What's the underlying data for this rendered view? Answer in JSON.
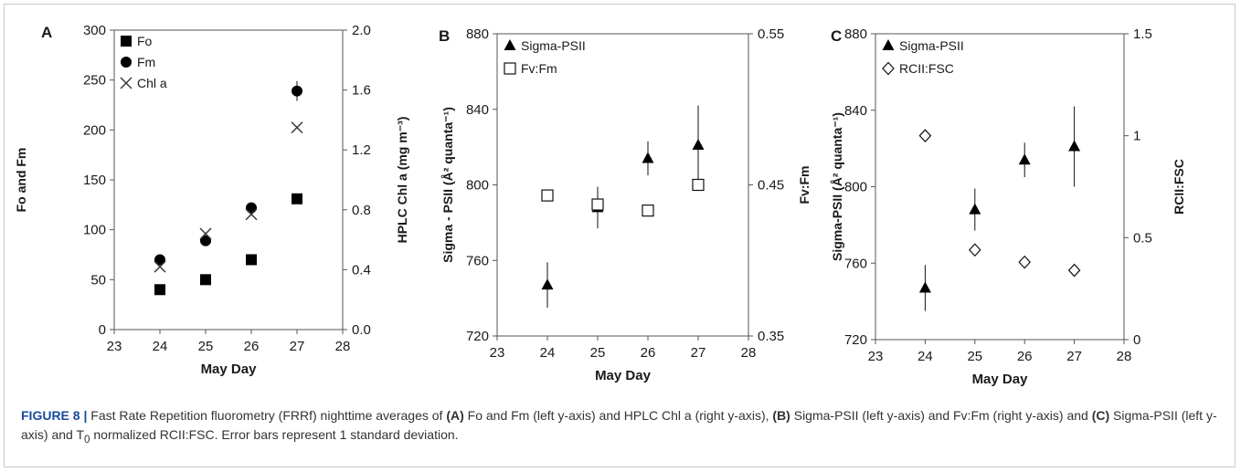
{
  "chart_data": [
    {
      "panel": "A",
      "type": "scatter",
      "xlabel": "May Day",
      "ylabel": "Fo and Fm",
      "y2label": "HPLC Chl a (mg m⁻³)",
      "xlim": [
        23,
        28
      ],
      "ylim": [
        0,
        300
      ],
      "y2lim": [
        0,
        2
      ],
      "xticks": [
        "23",
        "24",
        "25",
        "26",
        "27",
        "28"
      ],
      "yticks": [
        "0",
        "50",
        "100",
        "150",
        "200",
        "250",
        "300"
      ],
      "y2ticks": [
        "0.0",
        "0.4",
        "0.8",
        "1.2",
        "1.6",
        "2.0"
      ],
      "legend": "top-left",
      "series": [
        {
          "name": "Fo",
          "marker": "filled-square",
          "axis": "left",
          "x": [
            24,
            25,
            26,
            27
          ],
          "y": [
            40,
            50,
            70,
            131
          ]
        },
        {
          "name": "Fm",
          "marker": "filled-circle",
          "axis": "left",
          "x": [
            24,
            25,
            26,
            27
          ],
          "y": [
            70,
            89,
            122,
            239
          ],
          "err": [
            0,
            4,
            0,
            10
          ]
        },
        {
          "name": "Chl a",
          "marker": "x",
          "axis": "right",
          "x": [
            24,
            25,
            26,
            27
          ],
          "y": [
            0.42,
            0.64,
            0.77,
            1.35
          ]
        }
      ]
    },
    {
      "panel": "B",
      "type": "scatter",
      "xlabel": "May Day",
      "ylabel": "Sigma - PSII (Å² quanta⁻¹)",
      "y2label": "Fv:Fm",
      "xlim": [
        23,
        28
      ],
      "ylim": [
        720,
        880
      ],
      "y2lim": [
        0.35,
        0.55
      ],
      "xticks": [
        "23",
        "24",
        "25",
        "26",
        "27",
        "28"
      ],
      "yticks": [
        "720",
        "760",
        "800",
        "840",
        "880"
      ],
      "y2ticks": [
        "0.35",
        "0.45",
        "0.55"
      ],
      "legend": "top-left",
      "series": [
        {
          "name": "Sigma-PSII",
          "marker": "filled-triangle",
          "axis": "left",
          "x": [
            24,
            25,
            26,
            27
          ],
          "y": [
            747,
            788,
            814,
            821
          ],
          "err": [
            12,
            11,
            9,
            21
          ]
        },
        {
          "name": "Fv:Fm",
          "marker": "open-square",
          "axis": "right",
          "x": [
            24,
            25,
            26,
            27
          ],
          "y": [
            0.443,
            0.437,
            0.433,
            0.45
          ],
          "err": [
            0.004,
            0.004,
            0.002,
            0.004
          ]
        }
      ]
    },
    {
      "panel": "C",
      "type": "scatter",
      "xlabel": "May Day",
      "ylabel": "Sigma-PSII (Å² quanta⁻¹)",
      "y2label": "RCII:FSC",
      "xlim": [
        23,
        28
      ],
      "ylim": [
        720,
        880
      ],
      "y2lim": [
        0,
        1.5
      ],
      "xticks": [
        "23",
        "24",
        "25",
        "26",
        "27",
        "28"
      ],
      "yticks": [
        "720",
        "760",
        "800",
        "840",
        "880"
      ],
      "y2ticks": [
        "0",
        "0.5",
        "1",
        "1.5"
      ],
      "legend": "top-left",
      "series": [
        {
          "name": "Sigma-PSII",
          "marker": "filled-triangle",
          "axis": "left",
          "x": [
            24,
            25,
            26,
            27
          ],
          "y": [
            747,
            788,
            814,
            821
          ],
          "err": [
            12,
            11,
            9,
            21
          ]
        },
        {
          "name": "RCII:FSC",
          "marker": "open-diamond",
          "axis": "right",
          "x": [
            24,
            25,
            26,
            27
          ],
          "y": [
            1.0,
            0.44,
            0.38,
            0.34
          ]
        }
      ]
    }
  ],
  "caption": {
    "figure_label": "FIGURE 8 |",
    "t1": " Fast Rate Repetition fluorometry (FRRf) nighttime averages of ",
    "ba": "(A)",
    "t2": " Fo and Fm (left y-axis) and HPLC Chl a (right y-axis), ",
    "bb": "(B)",
    "t3": " Sigma-PSII (left y-axis) and Fv:Fm (right y-axis) and ",
    "bc": "(C)",
    "t4": " Sigma-PSII (left y-axis) and T",
    "sub": "0",
    "t5": " normalized RCII:FSC. Error bars represent 1 standard deviation."
  }
}
